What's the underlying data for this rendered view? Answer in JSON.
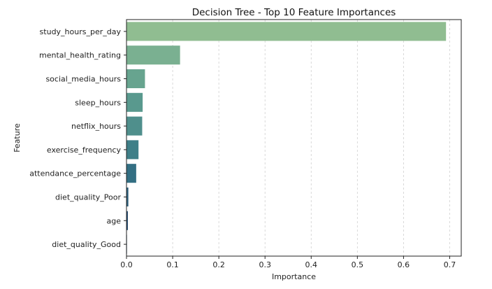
{
  "chart_data": {
    "type": "bar",
    "orientation": "horizontal",
    "title": "Decision Tree - Top 10 Feature Importances",
    "xlabel": "Importance",
    "ylabel": "Feature",
    "categories": [
      "study_hours_per_day",
      "mental_health_rating",
      "social_media_hours",
      "sleep_hours",
      "netflix_hours",
      "exercise_frequency",
      "attendance_percentage",
      "diet_quality_Poor",
      "age",
      "diet_quality_Good"
    ],
    "values": [
      0.692,
      0.116,
      0.04,
      0.035,
      0.034,
      0.026,
      0.021,
      0.004,
      0.003,
      0.001
    ],
    "colors": [
      "#90bd91",
      "#7ab091",
      "#67a48f",
      "#59998e",
      "#4f8f8c",
      "#3f7f88",
      "#336f83",
      "#2c5f7b",
      "#284e72",
      "#223f66"
    ],
    "xlim": [
      0,
      0.725
    ],
    "xticks": [
      0.0,
      0.1,
      0.2,
      0.3,
      0.4,
      0.5,
      0.6,
      0.7
    ],
    "xtick_labels": [
      "0.0",
      "0.1",
      "0.2",
      "0.3",
      "0.4",
      "0.5",
      "0.6",
      "0.7"
    ],
    "grid": "x-dashed",
    "legend": "none"
  }
}
